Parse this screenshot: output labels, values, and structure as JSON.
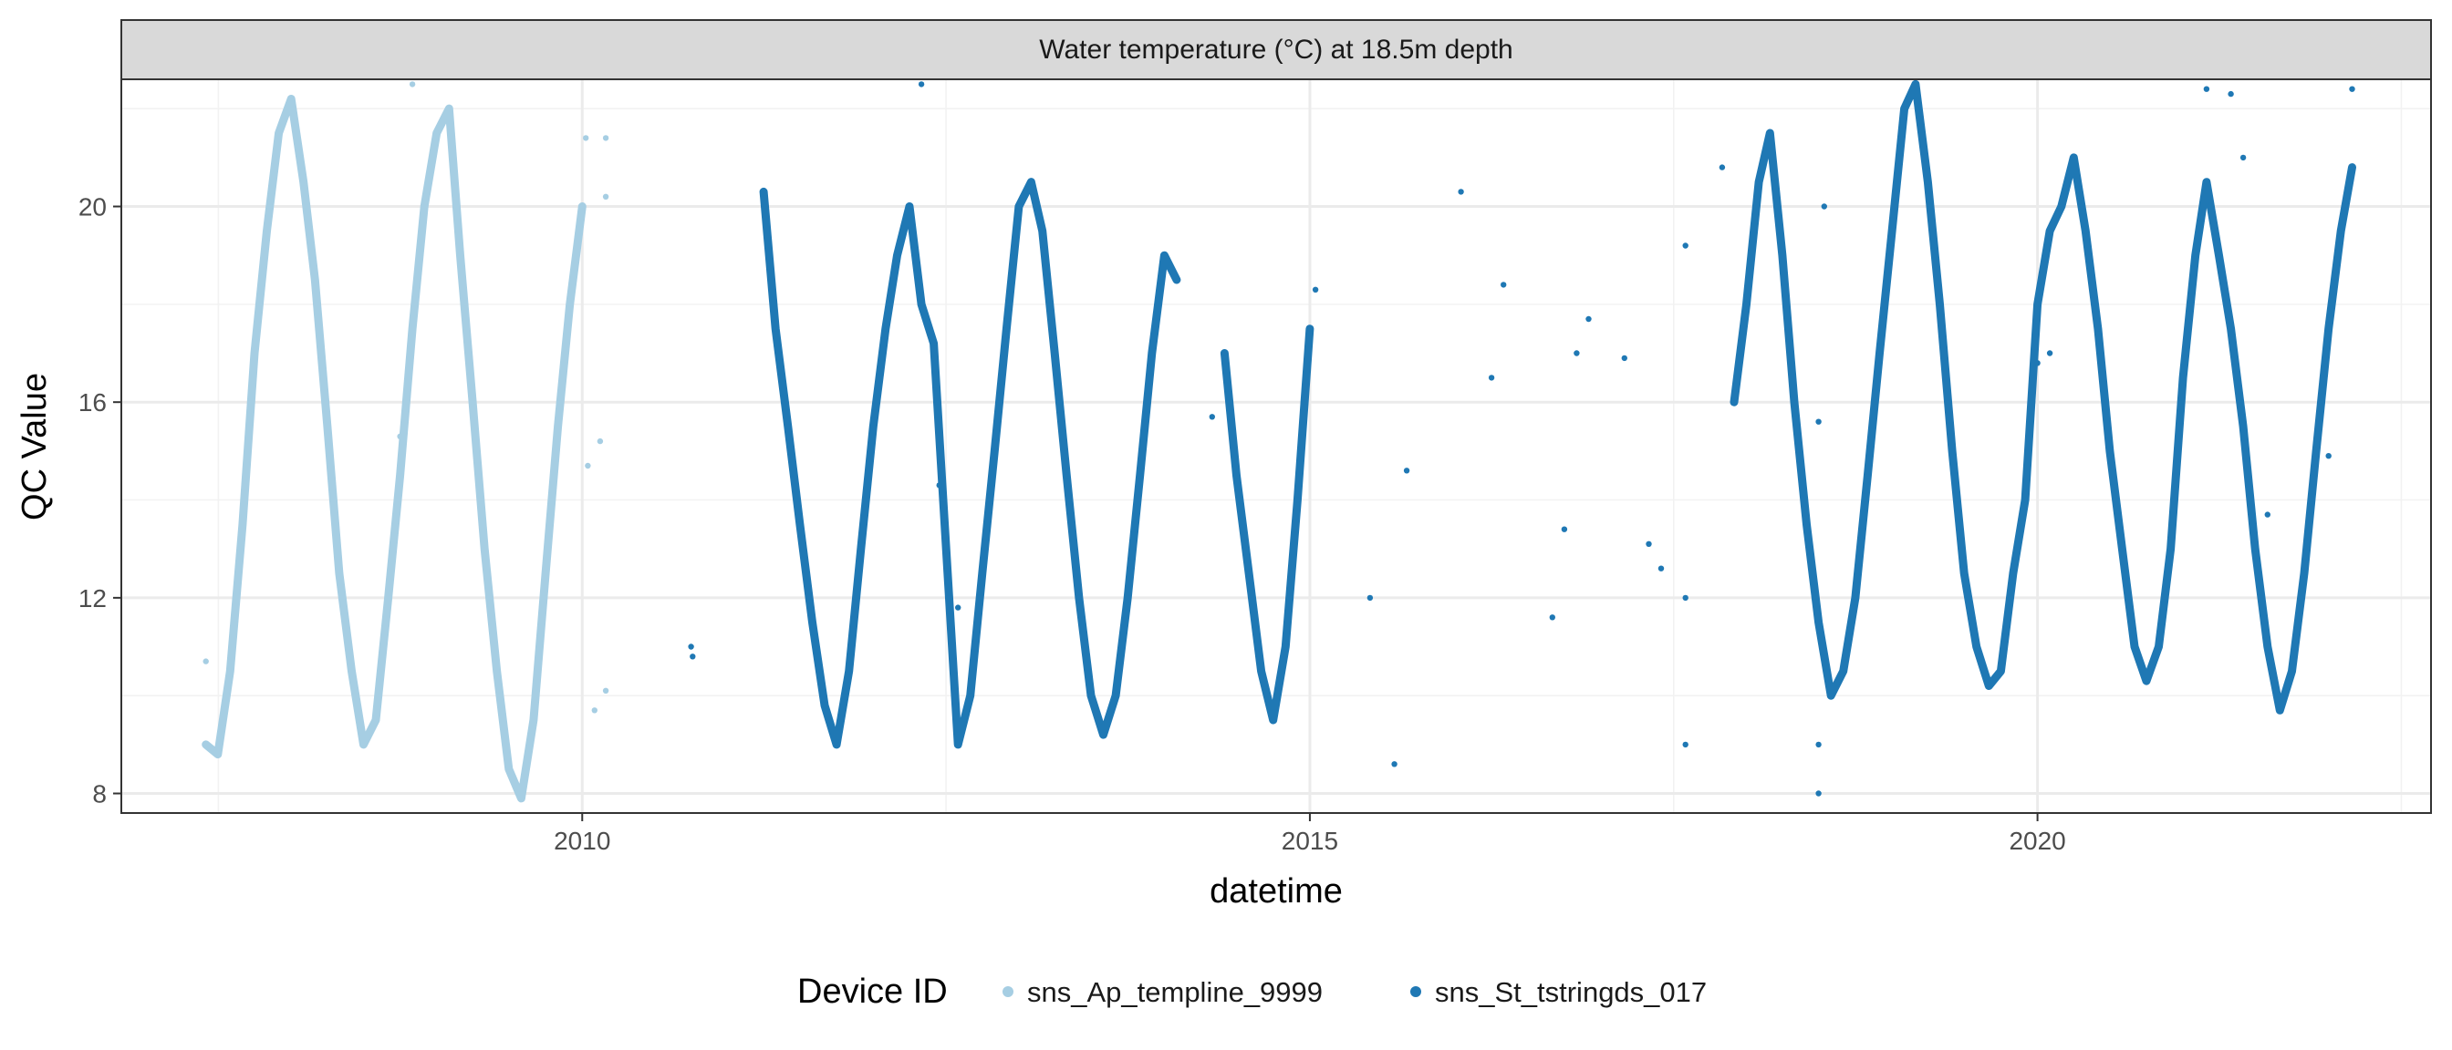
{
  "chart_data": {
    "type": "scatter",
    "title": "",
    "facet_label": "Water temperature (°C) at 18.5m depth",
    "xlabel": "datetime",
    "ylabel": "QC Value",
    "x_scale": "date",
    "xlim": [
      "2006-11-01",
      "2022-09-15"
    ],
    "ylim": [
      7.6,
      22.6
    ],
    "x_ticks": [
      {
        "label": "2010",
        "value": "2010-01-01"
      },
      {
        "label": "2015",
        "value": "2015-01-01"
      },
      {
        "label": "2020",
        "value": "2020-01-01"
      }
    ],
    "y_ticks": [
      8,
      12,
      16,
      20
    ],
    "grid": true,
    "legend": {
      "position": "bottom",
      "title": "Device ID",
      "entries": [
        {
          "name": "sns_Ap_templine_9999",
          "color": "#a6cee3"
        },
        {
          "name": "sns_St_tstringds_017",
          "color": "#1f78b4"
        }
      ]
    },
    "series": [
      {
        "name": "sns_Ap_templine_9999",
        "color": "#a6cee3",
        "points": [
          [
            "2007-06-01",
            9.0
          ],
          [
            "2007-07-01",
            8.8
          ],
          [
            "2007-08-01",
            10.5
          ],
          [
            "2007-09-01",
            13.5
          ],
          [
            "2007-10-01",
            17.0
          ],
          [
            "2007-11-01",
            19.5
          ],
          [
            "2007-12-01",
            21.5
          ],
          [
            "2008-01-01",
            22.2
          ],
          [
            "2008-02-01",
            20.5
          ],
          [
            "2008-03-01",
            18.5
          ],
          [
            "2008-04-01",
            15.5
          ],
          [
            "2008-05-01",
            12.5
          ],
          [
            "2008-06-01",
            10.5
          ],
          [
            "2008-07-01",
            9.0
          ],
          [
            "2008-08-01",
            9.5
          ],
          [
            "2008-09-01",
            12.0
          ],
          [
            "2008-10-01",
            14.5
          ],
          [
            "2008-11-01",
            17.5
          ],
          [
            "2008-12-01",
            20.0
          ],
          [
            "2009-01-01",
            21.5
          ],
          [
            "2009-02-01",
            22.0
          ],
          [
            "2009-03-01",
            19.0
          ],
          [
            "2009-04-01",
            16.0
          ],
          [
            "2009-05-01",
            13.0
          ],
          [
            "2009-06-01",
            10.5
          ],
          [
            "2009-07-01",
            8.5
          ],
          [
            "2009-08-01",
            7.9
          ],
          [
            "2009-09-01",
            9.5
          ],
          [
            "2009-10-01",
            12.5
          ],
          [
            "2009-11-01",
            15.5
          ],
          [
            "2009-12-01",
            18.0
          ],
          [
            "2010-01-01",
            20.0
          ]
        ],
        "outliers": [
          [
            "2007-06-01",
            10.7
          ],
          [
            "2008-11-01",
            22.5
          ],
          [
            "2008-10-01",
            15.3
          ],
          [
            "2010-01-10",
            21.4
          ],
          [
            "2010-03-01",
            21.4
          ],
          [
            "2010-03-01",
            20.2
          ],
          [
            "2010-02-15",
            15.2
          ],
          [
            "2010-01-15",
            14.7
          ],
          [
            "2010-02-01",
            9.7
          ],
          [
            "2010-03-01",
            10.1
          ]
        ]
      },
      {
        "name": "sns_St_tstringds_017",
        "color": "#1f78b4",
        "points": [
          [
            "2011-04-01",
            20.3
          ],
          [
            "2011-05-01",
            17.5
          ],
          [
            "2011-06-01",
            15.5
          ],
          [
            "2011-07-01",
            13.5
          ],
          [
            "2011-08-01",
            11.5
          ],
          [
            "2011-09-01",
            9.8
          ],
          [
            "2011-10-01",
            9.0
          ],
          [
            "2011-11-01",
            10.5
          ],
          [
            "2011-12-01",
            13.0
          ],
          [
            "2012-01-01",
            15.5
          ],
          [
            "2012-02-01",
            17.5
          ],
          [
            "2012-03-01",
            19.0
          ],
          [
            "2012-04-01",
            20.0
          ],
          [
            "2012-05-01",
            18.0
          ],
          [
            "2012-06-01",
            17.2
          ],
          [
            "2012-08-01",
            9.0
          ],
          [
            "2012-09-01",
            10.0
          ],
          [
            "2012-10-01",
            12.5
          ],
          [
            "2012-11-01",
            15.0
          ],
          [
            "2012-12-01",
            17.5
          ],
          [
            "2013-01-01",
            20.0
          ],
          [
            "2013-02-01",
            20.5
          ],
          [
            "2013-03-01",
            19.5
          ],
          [
            "2013-04-01",
            17.0
          ],
          [
            "2013-05-01",
            14.5
          ],
          [
            "2013-06-01",
            12.0
          ],
          [
            "2013-07-01",
            10.0
          ],
          [
            "2013-08-01",
            9.2
          ],
          [
            "2013-09-01",
            10.0
          ],
          [
            "2013-10-01",
            12.0
          ],
          [
            "2013-11-01",
            14.5
          ],
          [
            "2013-12-01",
            17.0
          ],
          [
            "2014-01-01",
            19.0
          ],
          [
            "2014-02-01",
            18.5
          ],
          [
            "2014-06-01",
            17.0
          ],
          [
            "2014-07-01",
            14.5
          ],
          [
            "2014-08-01",
            12.5
          ],
          [
            "2014-09-01",
            10.5
          ],
          [
            "2014-10-01",
            9.5
          ],
          [
            "2014-11-01",
            11.0
          ],
          [
            "2014-12-01",
            14.0
          ],
          [
            "2015-01-01",
            17.5
          ],
          [
            "2017-12-01",
            16.0
          ],
          [
            "2018-01-01",
            18.0
          ],
          [
            "2018-02-01",
            20.5
          ],
          [
            "2018-03-01",
            21.5
          ],
          [
            "2018-04-01",
            19.0
          ],
          [
            "2018-05-01",
            16.0
          ],
          [
            "2018-06-01",
            13.5
          ],
          [
            "2018-07-01",
            11.5
          ],
          [
            "2018-08-01",
            10.0
          ],
          [
            "2018-09-01",
            10.5
          ],
          [
            "2018-10-01",
            12.0
          ],
          [
            "2018-11-01",
            14.5
          ],
          [
            "2018-12-01",
            17.0
          ],
          [
            "2019-01-01",
            19.5
          ],
          [
            "2019-02-01",
            22.0
          ],
          [
            "2019-03-01",
            22.5
          ],
          [
            "2019-04-01",
            20.5
          ],
          [
            "2019-05-01",
            18.0
          ],
          [
            "2019-06-01",
            15.0
          ],
          [
            "2019-07-01",
            12.5
          ],
          [
            "2019-08-01",
            11.0
          ],
          [
            "2019-09-01",
            10.2
          ],
          [
            "2019-10-01",
            10.5
          ],
          [
            "2019-11-01",
            12.5
          ],
          [
            "2019-12-01",
            14.0
          ],
          [
            "2020-01-01",
            18.0
          ],
          [
            "2020-02-01",
            19.5
          ],
          [
            "2020-03-01",
            20.0
          ],
          [
            "2020-04-01",
            21.0
          ],
          [
            "2020-05-01",
            19.5
          ],
          [
            "2020-06-01",
            17.5
          ],
          [
            "2020-07-01",
            15.0
          ],
          [
            "2020-08-01",
            13.0
          ],
          [
            "2020-09-01",
            11.0
          ],
          [
            "2020-10-01",
            10.3
          ],
          [
            "2020-11-01",
            11.0
          ],
          [
            "2020-12-01",
            13.0
          ],
          [
            "2021-01-01",
            16.5
          ],
          [
            "2021-02-01",
            19.0
          ],
          [
            "2021-03-01",
            20.5
          ],
          [
            "2021-04-01",
            19.0
          ],
          [
            "2021-05-01",
            17.5
          ],
          [
            "2021-06-01",
            15.5
          ],
          [
            "2021-07-01",
            13.0
          ],
          [
            "2021-08-01",
            11.0
          ],
          [
            "2021-09-01",
            9.7
          ],
          [
            "2021-10-01",
            10.5
          ],
          [
            "2021-11-01",
            12.5
          ],
          [
            "2021-12-01",
            15.0
          ],
          [
            "2022-01-01",
            17.5
          ],
          [
            "2022-02-01",
            19.5
          ],
          [
            "2022-03-01",
            20.8
          ]
        ],
        "outliers": [
          [
            "2010-10-01",
            11.0
          ],
          [
            "2010-10-05",
            10.8
          ],
          [
            "2012-05-01",
            22.5
          ],
          [
            "2012-06-15",
            14.3
          ],
          [
            "2012-08-01",
            11.8
          ],
          [
            "2014-05-01",
            15.7
          ],
          [
            "2015-01-15",
            18.3
          ],
          [
            "2015-06-01",
            12.0
          ],
          [
            "2015-08-01",
            8.6
          ],
          [
            "2015-09-01",
            14.6
          ],
          [
            "2016-04-01",
            16.5
          ],
          [
            "2016-01-15",
            20.3
          ],
          [
            "2016-05-01",
            18.4
          ],
          [
            "2016-09-01",
            11.6
          ],
          [
            "2016-10-01",
            13.4
          ],
          [
            "2016-11-01",
            17.0
          ],
          [
            "2016-12-01",
            17.7
          ],
          [
            "2017-03-01",
            16.9
          ],
          [
            "2017-05-01",
            13.1
          ],
          [
            "2017-06-01",
            12.6
          ],
          [
            "2017-08-01",
            19.2
          ],
          [
            "2017-08-01",
            12.0
          ],
          [
            "2017-08-01",
            9.0
          ],
          [
            "2017-11-01",
            20.8
          ],
          [
            "2018-07-01",
            9.0
          ],
          [
            "2018-07-01",
            8.0
          ],
          [
            "2018-07-01",
            15.6
          ],
          [
            "2018-07-15",
            20.0
          ],
          [
            "2021-03-01",
            22.4
          ],
          [
            "2021-05-01",
            22.3
          ],
          [
            "2021-06-01",
            21.0
          ],
          [
            "2021-08-01",
            13.7
          ],
          [
            "2022-01-01",
            14.9
          ],
          [
            "2022-03-01",
            22.4
          ],
          [
            "2020-01-01",
            16.8
          ],
          [
            "2020-02-01",
            17.0
          ]
        ]
      }
    ]
  }
}
